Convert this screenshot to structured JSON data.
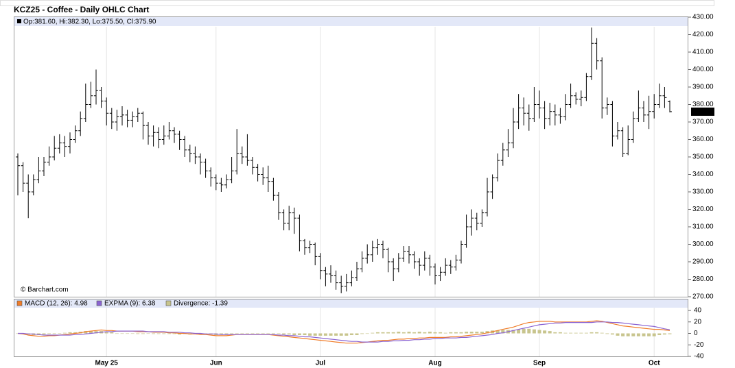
{
  "chart_data": [
    {
      "type": "ohlc",
      "title": "KCZ25 - Coffee - Daily OHLC Chart",
      "header": "Op:381.60, Hi:382.30, Lo:375.50, Cl:375.90",
      "source": "© Barchart.com",
      "last_label": "375.90",
      "color": "#000000",
      "categories": [
        null,
        null,
        null,
        null,
        null,
        null,
        null,
        null,
        null,
        null,
        null,
        null,
        null,
        null,
        null,
        null,
        null,
        "May 25",
        null,
        null,
        null,
        null,
        null,
        null,
        null,
        null,
        null,
        null,
        null,
        null,
        null,
        null,
        null,
        null,
        null,
        null,
        null,
        null,
        "Jun",
        null,
        null,
        null,
        null,
        null,
        null,
        null,
        null,
        null,
        null,
        null,
        null,
        null,
        null,
        null,
        null,
        null,
        null,
        null,
        "Jul",
        null,
        null,
        null,
        null,
        null,
        null,
        null,
        null,
        null,
        null,
        null,
        null,
        null,
        null,
        null,
        null,
        null,
        null,
        null,
        null,
        null,
        "Aug",
        null,
        null,
        null,
        null,
        null,
        null,
        null,
        null,
        null,
        null,
        null,
        null,
        null,
        null,
        null,
        null,
        null,
        null,
        null,
        "Sep",
        null,
        null,
        null,
        null,
        null,
        null,
        null,
        null,
        null,
        null,
        null,
        null,
        null,
        null,
        null,
        null,
        null,
        null,
        null,
        null,
        null,
        "Oct",
        null,
        null,
        null
      ],
      "open": [
        350,
        345,
        335,
        330,
        337,
        342,
        347,
        350,
        355,
        358,
        356,
        360,
        365,
        372,
        380,
        385,
        388,
        382,
        375,
        370,
        373,
        374,
        371,
        373,
        375,
        368,
        362,
        364,
        360,
        362,
        365,
        363,
        360,
        354,
        352,
        350,
        347,
        342,
        338,
        335,
        334,
        337,
        342,
        352,
        350,
        348,
        344,
        340,
        338,
        336,
        328,
        318,
        312,
        318,
        315,
        302,
        298,
        300,
        293,
        285,
        283,
        282,
        278,
        276,
        278,
        281,
        286,
        292,
        294,
        298,
        300,
        297,
        290,
        286,
        292,
        296,
        294,
        290,
        288,
        292,
        287,
        282,
        284,
        288,
        287,
        291,
        300,
        310,
        315,
        312,
        318,
        330,
        338,
        348,
        354,
        358,
        370,
        378,
        375,
        372,
        380,
        378,
        372,
        376,
        374,
        373,
        380,
        385,
        383,
        384,
        396,
        415,
        405,
        378,
        380,
        362,
        365,
        352,
        360,
        372,
        378,
        374,
        376,
        380,
        385,
        381.6
      ],
      "high": [
        352,
        347,
        340,
        340,
        350,
        350,
        356,
        362,
        363,
        362,
        364,
        368,
        376,
        392,
        393,
        400,
        390,
        384,
        378,
        377,
        379,
        377,
        376,
        378,
        376,
        370,
        368,
        367,
        368,
        370,
        367,
        365,
        362,
        357,
        356,
        352,
        349,
        344,
        340,
        338,
        340,
        350,
        366,
        356,
        363,
        350,
        346,
        344,
        345,
        338,
        330,
        320,
        322,
        321,
        317,
        303,
        302,
        301,
        295,
        287,
        288,
        285,
        282,
        283,
        285,
        290,
        296,
        300,
        302,
        303,
        302,
        298,
        292,
        295,
        299,
        299,
        296,
        292,
        296,
        294,
        289,
        287,
        292,
        291,
        294,
        302,
        317,
        320,
        318,
        320,
        338,
        340,
        352,
        358,
        366,
        378,
        386,
        384,
        380,
        390,
        388,
        382,
        381,
        380,
        378,
        386,
        392,
        387,
        388,
        398,
        424,
        418,
        407,
        384,
        382,
        370,
        367,
        368,
        376,
        388,
        382,
        385,
        386,
        392,
        390,
        382.3
      ],
      "low": [
        328,
        330,
        315,
        328,
        335,
        339,
        345,
        348,
        352,
        350,
        352,
        358,
        362,
        370,
        378,
        380,
        378,
        368,
        366,
        365,
        368,
        367,
        367,
        370,
        360,
        357,
        356,
        355,
        357,
        360,
        358,
        354,
        350,
        347,
        346,
        340,
        338,
        333,
        331,
        330,
        332,
        335,
        340,
        346,
        345,
        340,
        336,
        334,
        330,
        325,
        314,
        308,
        308,
        306,
        296,
        294,
        295,
        288,
        280,
        276,
        278,
        274,
        272,
        273,
        276,
        279,
        284,
        289,
        290,
        294,
        292,
        284,
        279,
        284,
        290,
        289,
        286,
        282,
        285,
        282,
        277,
        279,
        282,
        283,
        285,
        289,
        298,
        305,
        308,
        310,
        316,
        326,
        336,
        345,
        350,
        355,
        366,
        368,
        365,
        370,
        372,
        366,
        368,
        368,
        369,
        371,
        378,
        380,
        379,
        382,
        394,
        400,
        372,
        374,
        356,
        360,
        350,
        351,
        358,
        370,
        370,
        366,
        372,
        378,
        378,
        375.5
      ],
      "close": [
        345,
        335,
        330,
        337,
        342,
        347,
        350,
        355,
        358,
        356,
        360,
        365,
        372,
        380,
        385,
        388,
        382,
        375,
        370,
        373,
        374,
        371,
        373,
        375,
        368,
        362,
        364,
        360,
        362,
        365,
        363,
        360,
        354,
        352,
        350,
        347,
        342,
        338,
        335,
        334,
        337,
        342,
        352,
        350,
        348,
        344,
        340,
        338,
        336,
        328,
        318,
        312,
        318,
        315,
        302,
        298,
        300,
        293,
        285,
        283,
        282,
        278,
        276,
        278,
        281,
        286,
        292,
        294,
        298,
        300,
        297,
        290,
        286,
        292,
        296,
        294,
        290,
        288,
        292,
        287,
        282,
        284,
        288,
        287,
        291,
        300,
        310,
        315,
        312,
        318,
        330,
        338,
        348,
        354,
        358,
        370,
        378,
        375,
        372,
        380,
        378,
        372,
        376,
        374,
        373,
        380,
        385,
        383,
        384,
        396,
        415,
        405,
        378,
        380,
        362,
        365,
        352,
        360,
        372,
        378,
        374,
        376,
        380,
        385,
        384,
        375.9
      ],
      "ylim": [
        270,
        430
      ],
      "yticks": [
        {
          "value": 270,
          "label": "270.00"
        },
        {
          "value": 280,
          "label": "280.00"
        },
        {
          "value": 290,
          "label": "290.00"
        },
        {
          "value": 300,
          "label": "300.00"
        },
        {
          "value": 310,
          "label": "310.00"
        },
        {
          "value": 320,
          "label": "320.00"
        },
        {
          "value": 330,
          "label": "330.00"
        },
        {
          "value": 340,
          "label": "340.00"
        },
        {
          "value": 350,
          "label": "350.00"
        },
        {
          "value": 360,
          "label": "360.00"
        },
        {
          "value": 370,
          "label": "370.00"
        },
        {
          "value": 380,
          "label": "380.00"
        },
        {
          "value": 390,
          "label": "390.00"
        },
        {
          "value": 400,
          "label": "400.00"
        },
        {
          "value": 410,
          "label": "410.00"
        },
        {
          "value": 420,
          "label": "420.00"
        },
        {
          "value": 430,
          "label": "430.00"
        }
      ]
    },
    {
      "type": "line",
      "ylim": [
        -40,
        40
      ],
      "yticks": [
        40,
        20,
        0,
        -20,
        -40
      ],
      "series": [
        {
          "name": "MACD (12, 26): 4.98",
          "color": "#f07d2a",
          "values": [
            0,
            -1,
            -3,
            -4,
            -5,
            -5,
            -4,
            -4,
            -3,
            -2,
            -1,
            0,
            1,
            3,
            4,
            5,
            6,
            5,
            5,
            4,
            4,
            4,
            4,
            3,
            3,
            3,
            2,
            2,
            2,
            1,
            1,
            0,
            0,
            -1,
            -1,
            -2,
            -2,
            -3,
            -4,
            -4,
            -4,
            -3,
            -2,
            -2,
            -2,
            -2,
            -2,
            -2,
            -2,
            -3,
            -4,
            -5,
            -6,
            -7,
            -8,
            -9,
            -10,
            -11,
            -12,
            -13,
            -14,
            -15,
            -16,
            -17,
            -17,
            -17,
            -16,
            -15,
            -14,
            -13,
            -12,
            -12,
            -11,
            -10,
            -10,
            -9,
            -9,
            -8,
            -8,
            -7,
            -7,
            -7,
            -7,
            -6,
            -6,
            -5,
            -4,
            -3,
            -2,
            -1,
            1,
            3,
            5,
            7,
            9,
            11,
            14,
            17,
            19,
            20,
            21,
            21,
            21,
            20,
            20,
            20,
            20,
            20,
            20,
            20,
            21,
            22,
            21,
            19,
            17,
            15,
            13,
            12,
            11,
            10,
            9,
            8,
            7,
            7,
            6,
            4.98
          ]
        },
        {
          "name": "EXPMA (9): 6.38",
          "color": "#8a63d2",
          "values": [
            0,
            0,
            -1,
            -1,
            -2,
            -3,
            -3,
            -3,
            -3,
            -3,
            -3,
            -2,
            -2,
            -1,
            0,
            1,
            2,
            3,
            3,
            4,
            4,
            4,
            4,
            4,
            4,
            3,
            3,
            3,
            3,
            2,
            2,
            2,
            1,
            1,
            0,
            0,
            -1,
            -1,
            -1,
            -2,
            -2,
            -2,
            -2,
            -2,
            -2,
            -2,
            -2,
            -2,
            -2,
            -2,
            -3,
            -3,
            -4,
            -4,
            -5,
            -6,
            -6,
            -7,
            -8,
            -9,
            -10,
            -11,
            -12,
            -13,
            -14,
            -14,
            -15,
            -15,
            -15,
            -15,
            -14,
            -14,
            -13,
            -13,
            -12,
            -12,
            -11,
            -11,
            -10,
            -10,
            -9,
            -9,
            -8,
            -8,
            -8,
            -7,
            -7,
            -6,
            -5,
            -4,
            -3,
            -2,
            0,
            1,
            3,
            5,
            7,
            9,
            11,
            13,
            15,
            16,
            17,
            18,
            18,
            19,
            19,
            19,
            19,
            19,
            19,
            20,
            20,
            20,
            19,
            19,
            18,
            17,
            16,
            15,
            14,
            13,
            12,
            10,
            8,
            6.38
          ]
        },
        {
          "name": "Divergence: -1.39",
          "color": "#c8c58e",
          "kind": "bar",
          "values": [
            0,
            -1,
            -2,
            -3,
            -3,
            -2,
            -1,
            -1,
            0,
            1,
            2,
            2,
            3,
            4,
            4,
            4,
            4,
            2,
            2,
            0,
            0,
            0,
            0,
            -1,
            -1,
            0,
            -1,
            -1,
            -1,
            -1,
            -1,
            -2,
            -1,
            -2,
            -1,
            -2,
            -1,
            -2,
            -3,
            -2,
            -2,
            -1,
            0,
            0,
            0,
            0,
            0,
            0,
            0,
            -1,
            -1,
            -2,
            -2,
            -3,
            -3,
            -3,
            -4,
            -4,
            -4,
            -4,
            -4,
            -4,
            -4,
            -4,
            -3,
            -3,
            -1,
            0,
            1,
            2,
            2,
            2,
            2,
            3,
            2,
            3,
            2,
            3,
            2,
            3,
            2,
            2,
            1,
            2,
            2,
            2,
            3,
            3,
            3,
            3,
            4,
            5,
            5,
            6,
            6,
            6,
            7,
            8,
            8,
            7,
            6,
            5,
            4,
            2,
            2,
            1,
            1,
            1,
            1,
            1,
            2,
            2,
            1,
            -1,
            -2,
            -4,
            -5,
            -5,
            -5,
            -5,
            -5,
            -5,
            -5,
            -3,
            -2,
            -1.39
          ]
        }
      ]
    }
  ]
}
